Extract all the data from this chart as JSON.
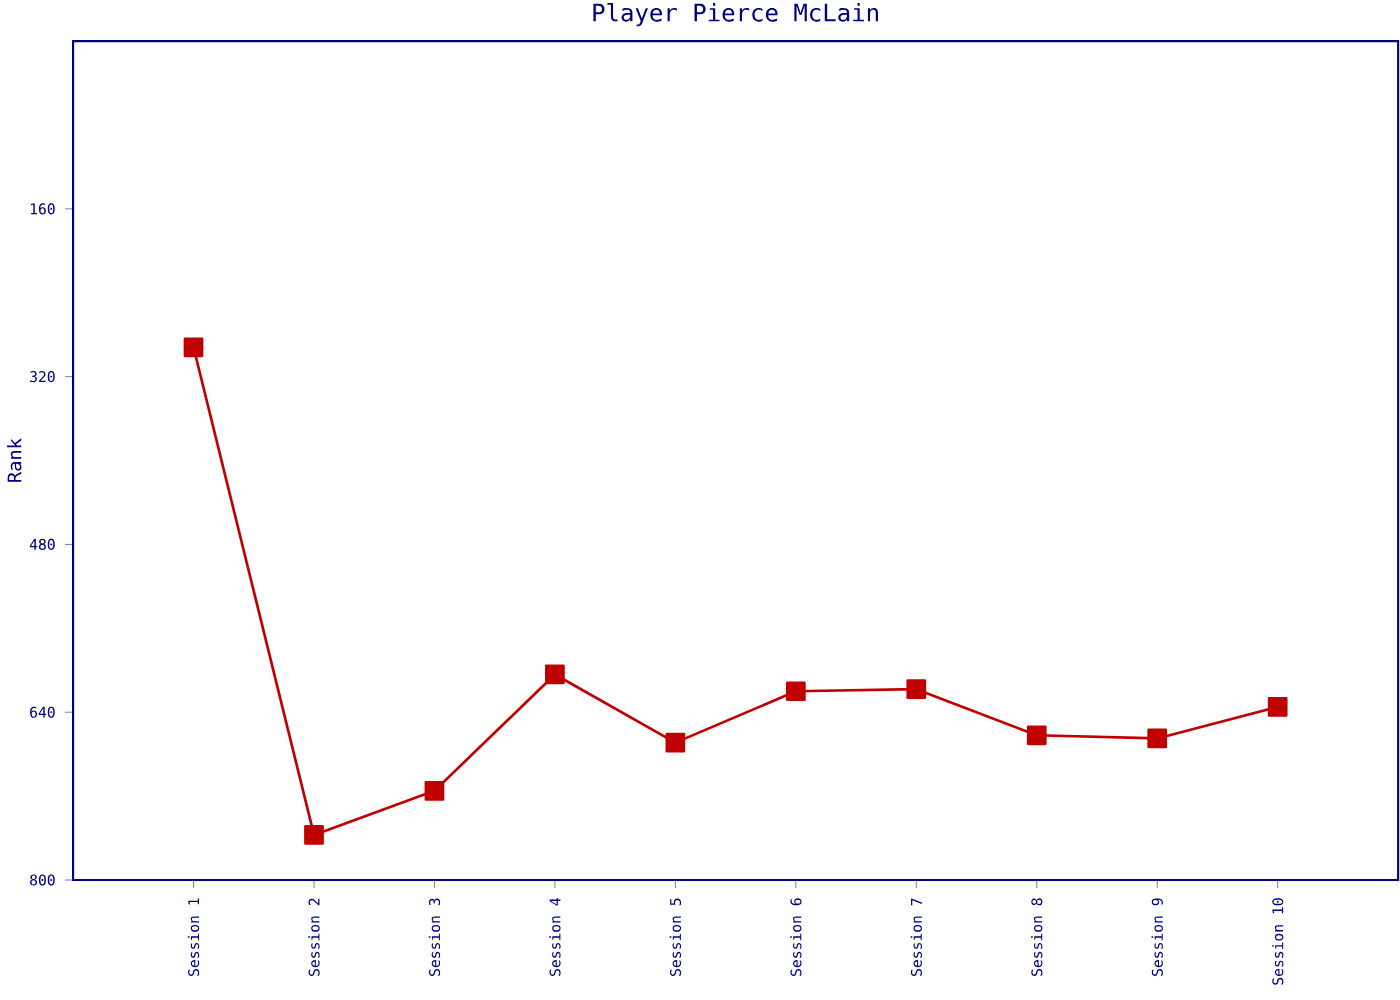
{
  "chart_data": {
    "type": "line",
    "title": "Player Pierce McLain",
    "ylabel": "Rank",
    "categories": [
      "Session 1",
      "Session 2",
      "Session 3",
      "Session 4",
      "Session 5",
      "Session 6",
      "Session 7",
      "Session 8",
      "Session 9",
      "Session 10"
    ],
    "series": [
      {
        "color": "#c00000",
        "values": [
          292,
          757,
          715,
          604,
          669,
          620,
          618,
          662,
          665,
          635
        ]
      }
    ],
    "ylim": [
      800,
      0
    ],
    "yticks": [
      160,
      320,
      480,
      640,
      800
    ],
    "marker": "square",
    "line_style": "solid"
  }
}
